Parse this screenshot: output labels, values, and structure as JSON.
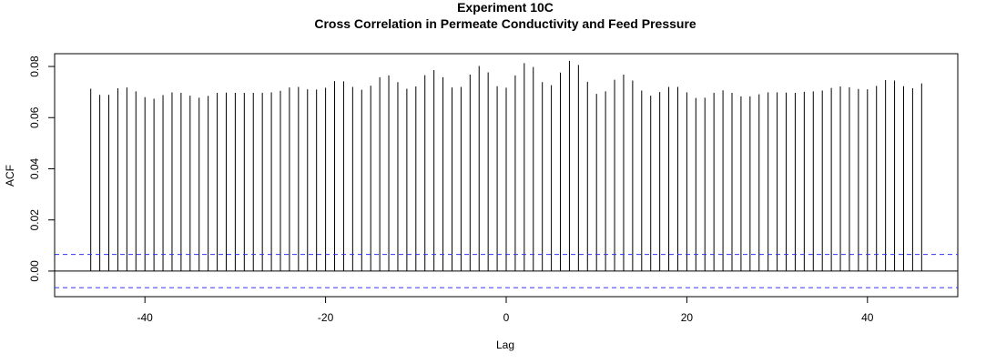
{
  "chart_data": {
    "type": "bar",
    "title": "Experiment  10C",
    "subtitle": "Cross Correlation in Permeate Conductivity and Feed Pressure",
    "xlabel": "Lag",
    "ylabel": "ACF",
    "xlim": [
      -50,
      50
    ],
    "ylim": [
      -0.01,
      0.085
    ],
    "x_ticks": [
      -40,
      -20,
      0,
      20,
      40
    ],
    "x_tick_labels": [
      "-40",
      "-20",
      "0",
      "20",
      "40"
    ],
    "y_ticks": [
      0,
      0.02,
      0.04,
      0.06,
      0.08
    ],
    "y_tick_labels": [
      "0.00",
      "0.02",
      "0.04",
      "0.06",
      "0.08"
    ],
    "grid": false,
    "confidence_band": [
      0.0065,
      -0.0065
    ],
    "colors": {
      "bars": "#000000",
      "baseline": "#000000",
      "confidence": "#3333ff",
      "frame": "#000000"
    },
    "x": [
      -46,
      -45,
      -44,
      -43,
      -42,
      -41,
      -40,
      -39,
      -38,
      -37,
      -36,
      -35,
      -34,
      -33,
      -32,
      -31,
      -30,
      -29,
      -28,
      -27,
      -26,
      -25,
      -24,
      -23,
      -22,
      -21,
      -20,
      -19,
      -18,
      -17,
      -16,
      -15,
      -14,
      -13,
      -12,
      -11,
      -10,
      -9,
      -8,
      -7,
      -6,
      -5,
      -4,
      -3,
      -2,
      -1,
      0,
      1,
      2,
      3,
      4,
      5,
      6,
      7,
      8,
      9,
      10,
      11,
      12,
      13,
      14,
      15,
      16,
      17,
      18,
      19,
      20,
      21,
      22,
      23,
      24,
      25,
      26,
      27,
      28,
      29,
      30,
      31,
      32,
      33,
      34,
      35,
      36,
      37,
      38,
      39,
      40,
      41,
      42,
      43,
      44,
      45,
      46
    ],
    "values": [
      0.0713,
      0.0689,
      0.0689,
      0.0715,
      0.0718,
      0.0703,
      0.068,
      0.0674,
      0.0688,
      0.0699,
      0.0697,
      0.0686,
      0.0678,
      0.0685,
      0.0697,
      0.0698,
      0.0697,
      0.0697,
      0.0697,
      0.0697,
      0.0699,
      0.0705,
      0.0718,
      0.072,
      0.0711,
      0.071,
      0.0717,
      0.0743,
      0.0742,
      0.072,
      0.0709,
      0.0725,
      0.0758,
      0.0765,
      0.0739,
      0.0713,
      0.0722,
      0.0766,
      0.0786,
      0.0758,
      0.0718,
      0.072,
      0.0768,
      0.0802,
      0.0777,
      0.0723,
      0.0717,
      0.0765,
      0.0813,
      0.0798,
      0.0739,
      0.0727,
      0.0776,
      0.0822,
      0.0806,
      0.074,
      0.0693,
      0.0703,
      0.0748,
      0.0768,
      0.0745,
      0.0706,
      0.0686,
      0.07,
      0.072,
      0.072,
      0.0699,
      0.0677,
      0.0678,
      0.0697,
      0.0707,
      0.0697,
      0.0683,
      0.0683,
      0.0691,
      0.0699,
      0.0699,
      0.0698,
      0.0697,
      0.0701,
      0.0703,
      0.0706,
      0.0716,
      0.0722,
      0.0719,
      0.0712,
      0.0711,
      0.0724,
      0.0747,
      0.0745,
      0.0723,
      0.0715,
      0.0734
    ]
  }
}
